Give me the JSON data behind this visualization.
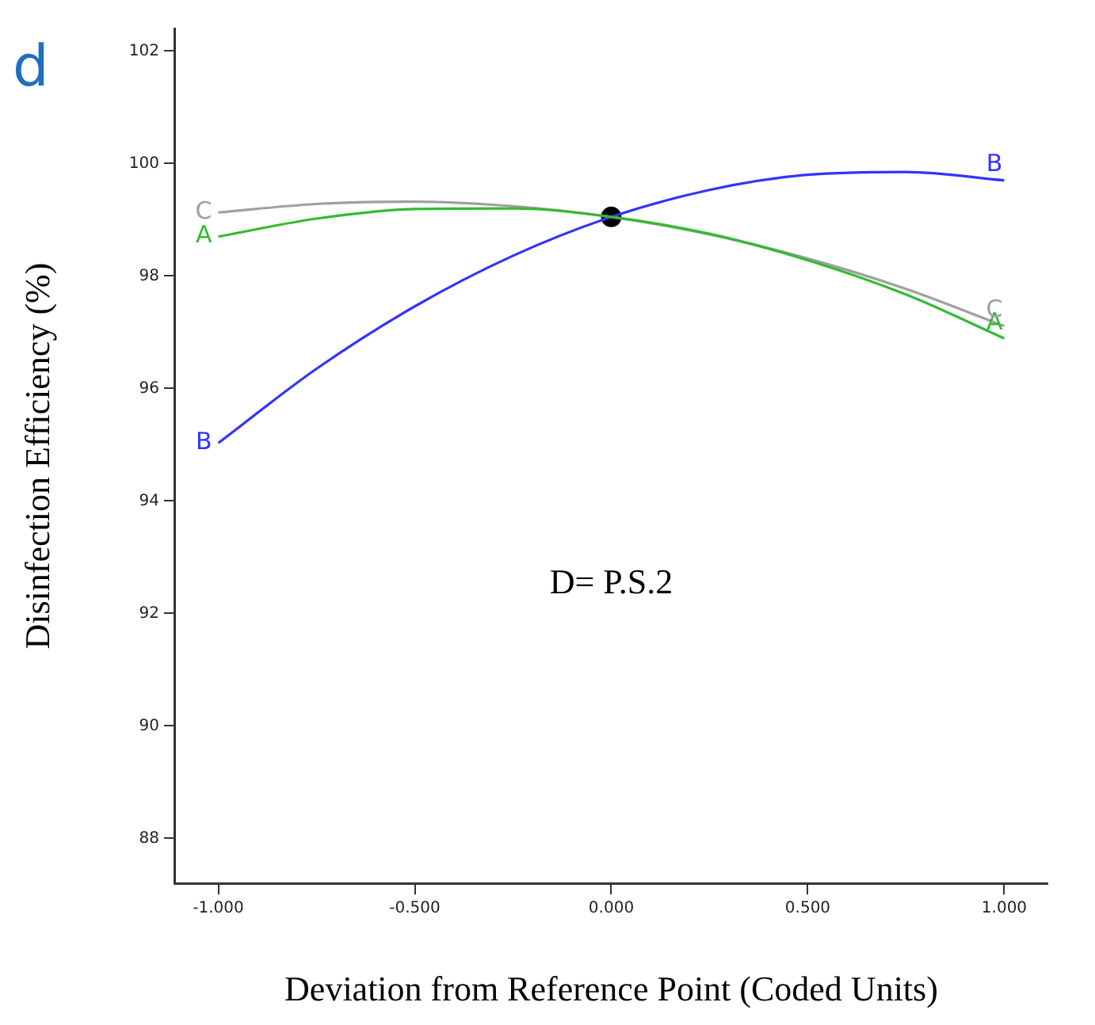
{
  "chart_data": {
    "type": "line",
    "title": "d",
    "xlabel": "Deviation from Reference Point (Coded Units)",
    "ylabel": "Disinfection Efficiency (%)",
    "annotations": [
      "D= P.S.2"
    ],
    "x": [
      -1,
      -0.75,
      -0.5,
      -0.25,
      0,
      0.25,
      0.5,
      0.75,
      1
    ],
    "series": [
      {
        "name": "A",
        "color": "#33bb33",
        "values": [
          98.7,
          99.02,
          99.19,
          99.2,
          99.05,
          98.75,
          98.28,
          97.67,
          96.89
        ]
      },
      {
        "name": "B",
        "color": "#3333ff",
        "values": [
          95.03,
          96.35,
          97.46,
          98.36,
          99.05,
          99.53,
          99.8,
          99.85,
          99.7
        ]
      },
      {
        "name": "C",
        "color": "#a0a0a0",
        "values": [
          99.13,
          99.28,
          99.32,
          99.24,
          99.05,
          98.74,
          98.31,
          97.77,
          97.11
        ]
      },
      {
        "type": "scatter",
        "marker": "circle",
        "color": "#000000",
        "x": [
          0
        ],
        "values": [
          99.05
        ]
      }
    ],
    "xlim": [
      -1.11,
      1.11
    ],
    "ylim": [
      87.2,
      102.4
    ],
    "xticks": [
      {
        "value": -1,
        "label": "-1.000"
      },
      {
        "value": -0.5,
        "label": "-0.500"
      },
      {
        "value": 0,
        "label": "0.000"
      },
      {
        "value": 0.5,
        "label": "0.500"
      },
      {
        "value": 1,
        "label": "1.000"
      }
    ],
    "yticks": [
      88,
      90,
      92,
      94,
      96,
      98,
      100,
      102
    ],
    "grid": false,
    "legend": false,
    "marker": "none",
    "line_style": "solid"
  }
}
